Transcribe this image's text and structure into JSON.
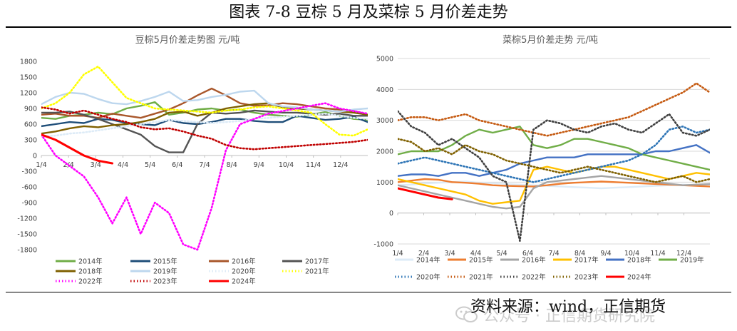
{
  "header": {
    "title": "图表 7-8 豆棕 5 月及菜棕 5 月价差走势"
  },
  "footer": {
    "source": "资料来源：wind，正信期货",
    "watermark": "公众号 · 正信期货研究院"
  },
  "chart_data": [
    {
      "type": "line",
      "title": "豆棕5月价差走势图    元/吨",
      "x_ticks": [
        "1/4",
        "2/4",
        "3/4",
        "4/4",
        "5/4",
        "6/4",
        "7/4",
        "8/4",
        "9/4",
        "10/4",
        "11/4",
        "12/4"
      ],
      "ylim": [
        -1800,
        1800
      ],
      "y_ticks": [
        1800,
        1500,
        1200,
        900,
        600,
        300,
        0,
        -300,
        -600,
        -900,
        -1200,
        -1500,
        -1800
      ],
      "grid": false,
      "legend_position": "bottom",
      "series": [
        {
          "name": "2014年",
          "color": "#70AD47",
          "style": "solid",
          "values": [
            720,
            700,
            760,
            780,
            820,
            790,
            900,
            950,
            1020,
            780,
            820,
            880,
            900,
            860,
            880,
            820,
            780,
            760,
            740,
            780,
            830,
            760,
            700,
            680
          ]
        },
        {
          "name": "2015年",
          "color": "#1F4E79",
          "style": "solid",
          "values": [
            560,
            600,
            640,
            620,
            700,
            680,
            620,
            600,
            580,
            680,
            620,
            600,
            640,
            700,
            700,
            660,
            640,
            640,
            760,
            720,
            680,
            700,
            740,
            640
          ]
        },
        {
          "name": "2016年",
          "color": "#A9572B",
          "style": "solid",
          "values": [
            780,
            800,
            760,
            760,
            720,
            800,
            760,
            720,
            800,
            880,
            1000,
            1150,
            1280,
            1150,
            1000,
            950,
            960,
            1000,
            980,
            940,
            900,
            880,
            850,
            780
          ]
        },
        {
          "name": "2017年",
          "color": "#545454",
          "style": "solid",
          "values": [
            820,
            820,
            840,
            780,
            700,
            600,
            500,
            400,
            180,
            60,
            60,
            600,
            820,
            800,
            820,
            860,
            840,
            820,
            820,
            800,
            780,
            800,
            760,
            760
          ]
        },
        {
          "name": "2018年",
          "color": "#7F6000",
          "style": "solid",
          "values": [
            420,
            460,
            520,
            560,
            540,
            580,
            600,
            640,
            700,
            820,
            840,
            760,
            820,
            900,
            940,
            980,
            1000,
            920,
            900,
            880,
            860,
            840,
            820,
            780
          ]
        },
        {
          "name": "2019年",
          "color": "#BDD7EE",
          "style": "solid",
          "values": [
            980,
            1120,
            1200,
            1180,
            1080,
            1000,
            980,
            1040,
            1120,
            1220,
            1040,
            1060,
            1120,
            1160,
            1220,
            1240,
            1000,
            940,
            920,
            880,
            860,
            840,
            880,
            900
          ]
        },
        {
          "name": "2020年",
          "color": "#DDEBF7",
          "style": "dotted",
          "values": [
            360,
            380,
            420,
            440,
            480,
            520,
            560,
            600,
            640,
            680,
            660,
            640,
            620,
            640,
            660,
            700,
            720,
            740,
            760,
            780,
            800,
            760,
            720,
            700
          ]
        },
        {
          "name": "2021年",
          "color": "#FFFF00",
          "style": "dotted",
          "values": [
            900,
            1000,
            1200,
            1550,
            1700,
            1400,
            1100,
            1000,
            900,
            880,
            860,
            840,
            820,
            860,
            880,
            920,
            940,
            900,
            860,
            820,
            600,
            400,
            380,
            500
          ]
        },
        {
          "name": "2022年",
          "color": "#FF00FF",
          "style": "dotted",
          "values": [
            400,
            0,
            -200,
            -400,
            -800,
            -1300,
            -800,
            -1500,
            -900,
            -1100,
            -1700,
            -1800,
            -1000,
            100,
            600,
            700,
            800,
            850,
            900,
            950,
            1000,
            900,
            850,
            800
          ]
        },
        {
          "name": "2023年",
          "color": "#C00000",
          "style": "dotted",
          "values": [
            920,
            880,
            800,
            860,
            780,
            700,
            640,
            540,
            500,
            520,
            460,
            380,
            320,
            200,
            140,
            120,
            140,
            160,
            180,
            200,
            220,
            240,
            260,
            300
          ]
        },
        {
          "name": "2024年",
          "color": "#FF0000",
          "style": "solid",
          "values": [
            400,
            300,
            150,
            0,
            -100,
            -150
          ]
        }
      ]
    },
    {
      "type": "line",
      "title": "菜棕5月价差走势 元/吨",
      "x_ticks": [
        "1/4",
        "2/4",
        "3/4",
        "4/4",
        "5/4",
        "6/4",
        "7/4",
        "8/4",
        "9/4",
        "10/4",
        "11/4",
        "12/4"
      ],
      "ylim": [
        -1000,
        5000
      ],
      "y_ticks": [
        5000,
        4000,
        3000,
        2000,
        1000,
        0,
        -1000
      ],
      "grid": true,
      "legend_position": "bottom",
      "series": [
        {
          "name": "2014年",
          "color": "#DDEBF7",
          "style": "solid",
          "values": [
            900,
            920,
            960,
            980,
            1000,
            1020,
            980,
            960,
            940,
            920,
            900,
            880,
            860,
            840,
            820,
            800,
            820,
            840,
            860,
            880,
            900,
            920,
            900,
            880
          ]
        },
        {
          "name": "2015年",
          "color": "#ED7D31",
          "style": "solid",
          "values": [
            1000,
            1050,
            1100,
            1080,
            1000,
            980,
            950,
            900,
            880,
            870,
            860,
            900,
            950,
            980,
            1000,
            1020,
            1000,
            980,
            960,
            940,
            920,
            900,
            880,
            860
          ]
        },
        {
          "name": "2016年",
          "color": "#A5A5A5",
          "style": "solid",
          "values": [
            900,
            800,
            700,
            600,
            500,
            400,
            300,
            200,
            150,
            200,
            800,
            1000,
            1050,
            1100,
            1150,
            1200,
            1150,
            1100,
            1050,
            1000,
            950,
            900,
            920,
            940
          ]
        },
        {
          "name": "2017年",
          "color": "#FFC000",
          "style": "solid",
          "values": [
            1100,
            1000,
            900,
            800,
            700,
            600,
            400,
            300,
            350,
            400,
            1400,
            1500,
            1400,
            1300,
            1400,
            1500,
            1500,
            1400,
            1300,
            1200,
            1100,
            1200,
            1300,
            1250
          ]
        },
        {
          "name": "2018年",
          "color": "#4472C4",
          "style": "solid",
          "values": [
            1200,
            1250,
            1250,
            1200,
            1300,
            1300,
            1200,
            1300,
            1400,
            1600,
            1700,
            1800,
            1800,
            1800,
            1900,
            1900,
            1900,
            1900,
            1900,
            2000,
            2000,
            2100,
            2200,
            1950
          ]
        },
        {
          "name": "2019年",
          "color": "#70AD47",
          "style": "solid",
          "values": [
            1900,
            2000,
            2000,
            2000,
            2200,
            2500,
            2700,
            2600,
            2700,
            2800,
            2200,
            2100,
            2200,
            2400,
            2400,
            2300,
            2200,
            2100,
            1900,
            1800,
            1700,
            1600,
            1500,
            1400
          ]
        },
        {
          "name": "2020年",
          "color": "#2E75B6",
          "style": "dotted",
          "values": [
            1600,
            1700,
            1800,
            1700,
            1600,
            1500,
            1400,
            1300,
            1200,
            1100,
            1000,
            1100,
            1200,
            1300,
            1400,
            1500,
            1600,
            1700,
            1900,
            2200,
            2700,
            2800,
            2600,
            2700
          ]
        },
        {
          "name": "2021年",
          "color": "#C55A11",
          "style": "dotted",
          "values": [
            3000,
            3100,
            3100,
            3000,
            3100,
            3200,
            3000,
            2900,
            2800,
            2700,
            2600,
            2500,
            2600,
            2700,
            2800,
            2900,
            3000,
            3100,
            3300,
            3500,
            3700,
            3900,
            4200,
            3900
          ]
        },
        {
          "name": "2022年",
          "color": "#404040",
          "style": "dotted",
          "values": [
            3300,
            2800,
            2600,
            2200,
            2400,
            2100,
            1800,
            1200,
            1000,
            -900,
            2700,
            3000,
            2900,
            2700,
            2600,
            2800,
            2900,
            2700,
            2600,
            2900,
            3200,
            2600,
            2500,
            2700
          ]
        },
        {
          "name": "2023年",
          "color": "#7F6000",
          "style": "dotted",
          "values": [
            2400,
            2300,
            2000,
            2100,
            1900,
            2200,
            2000,
            1900,
            1700,
            1600,
            1500,
            1400,
            1300,
            1400,
            1500,
            1400,
            1300,
            1200,
            1100,
            1000,
            1100,
            1200,
            1000,
            1100
          ]
        },
        {
          "name": "2024年",
          "color": "#FF0000",
          "style": "solid",
          "values": [
            800,
            700,
            600,
            500,
            450
          ]
        }
      ]
    }
  ]
}
